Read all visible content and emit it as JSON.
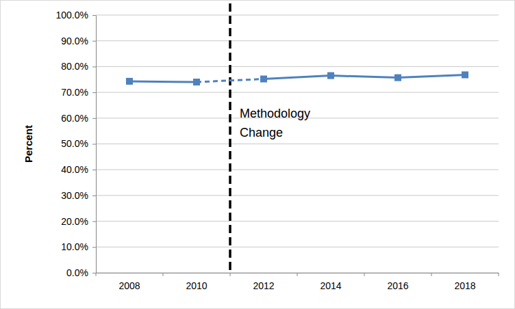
{
  "chart_data": {
    "type": "line",
    "y_label": "Percent",
    "categories": [
      "2008",
      "2010",
      "2012",
      "2014",
      "2016",
      "2018"
    ],
    "values": [
      74.3,
      74.0,
      75.2,
      76.5,
      75.7,
      76.8
    ],
    "color": "#4f81bd",
    "marker": "square",
    "line_style": "solid",
    "ylim": [
      0,
      100
    ],
    "yticks": [
      {
        "value": 0,
        "label": "0.0%"
      },
      {
        "value": 10,
        "label": "10.0%"
      },
      {
        "value": 20,
        "label": "20.0%"
      },
      {
        "value": 30,
        "label": "30.0%"
      },
      {
        "value": 40,
        "label": "40.0%"
      },
      {
        "value": 50,
        "label": "50.0%"
      },
      {
        "value": 60,
        "label": "60.0%"
      },
      {
        "value": 70,
        "label": "70.0%"
      },
      {
        "value": 80,
        "label": "80.0%"
      },
      {
        "value": 90,
        "label": "90.0%"
      },
      {
        "value": 100,
        "label": "100.0%"
      }
    ],
    "grid": true,
    "annotations": [
      {
        "text": "Methodology Change",
        "between": [
          "2010",
          "2012"
        ]
      }
    ]
  }
}
